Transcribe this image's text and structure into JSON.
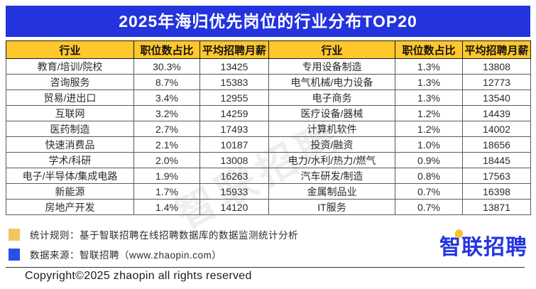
{
  "title": "2025年海归优先岗位的行业分布TOP20",
  "table": {
    "headers": [
      "行业",
      "职位数占比",
      "平均招聘月薪",
      "行业",
      "职位数占比",
      "平均招聘月薪"
    ],
    "rows_left": [
      [
        "教育/培训/院校",
        "30.3%",
        "13425"
      ],
      [
        "咨询服务",
        "8.7%",
        "15383"
      ],
      [
        "贸易/进出口",
        "3.4%",
        "12955"
      ],
      [
        "互联网",
        "3.2%",
        "14259"
      ],
      [
        "医药制造",
        "2.7%",
        "17493"
      ],
      [
        "快速消费品",
        "2.1%",
        "10187"
      ],
      [
        "学术/科研",
        "2.0%",
        "13008"
      ],
      [
        "电子/半导体/集成电路",
        "1.9%",
        "16263"
      ],
      [
        "新能源",
        "1.7%",
        "15933"
      ],
      [
        "房地产开发",
        "1.4%",
        "14120"
      ]
    ],
    "rows_right": [
      [
        "专用设备制造",
        "1.3%",
        "13808"
      ],
      [
        "电气机械/电力设备",
        "1.3%",
        "12773"
      ],
      [
        "电子商务",
        "1.3%",
        "13540"
      ],
      [
        "医疗设备/器械",
        "1.2%",
        "14439"
      ],
      [
        "计算机软件",
        "1.2%",
        "14002"
      ],
      [
        "投资/融资",
        "1.0%",
        "18656"
      ],
      [
        "电力/水利/热力/燃气",
        "0.9%",
        "18445"
      ],
      [
        "汽车研发/制造",
        "0.8%",
        "17563"
      ],
      [
        "金属制品业",
        "0.7%",
        "16398"
      ],
      [
        "IT服务",
        "0.7%",
        "13871"
      ]
    ]
  },
  "chart_data": {
    "type": "table",
    "title": "2025年海归优先岗位的行业分布TOP20",
    "columns": [
      "行业",
      "职位数占比",
      "平均招聘月薪"
    ],
    "rows": [
      [
        "教育/培训/院校",
        "30.3%",
        13425
      ],
      [
        "咨询服务",
        "8.7%",
        15383
      ],
      [
        "贸易/进出口",
        "3.4%",
        12955
      ],
      [
        "互联网",
        "3.2%",
        14259
      ],
      [
        "医药制造",
        "2.7%",
        17493
      ],
      [
        "快速消费品",
        "2.1%",
        10187
      ],
      [
        "学术/科研",
        "2.0%",
        13008
      ],
      [
        "电子/半导体/集成电路",
        "1.9%",
        16263
      ],
      [
        "新能源",
        "1.7%",
        15933
      ],
      [
        "房地产开发",
        "1.4%",
        14120
      ],
      [
        "专用设备制造",
        "1.3%",
        13808
      ],
      [
        "电气机械/电力设备",
        "1.3%",
        12773
      ],
      [
        "电子商务",
        "1.3%",
        13540
      ],
      [
        "医疗设备/器械",
        "1.2%",
        14439
      ],
      [
        "计算机软件",
        "1.2%",
        14002
      ],
      [
        "投资/融资",
        "1.0%",
        18656
      ],
      [
        "电力/水利/热力/燃气",
        "0.9%",
        18445
      ],
      [
        "汽车研发/制造",
        "0.8%",
        17563
      ],
      [
        "金属制品业",
        "0.7%",
        16398
      ],
      [
        "IT服务",
        "0.7%",
        13871
      ]
    ]
  },
  "footer": {
    "legend_rules": "统计规则：基于智联招聘在线招聘数据库的数据监测统计分析",
    "legend_source": "数据来源：智联招聘（www.zhaopin.com）",
    "logo_text": "智联招聘",
    "copyright": "Copyright©2025 zhaopin all rights reserved"
  },
  "watermark": "智联招聘",
  "colors": {
    "title_bar_blue": "#2333dd",
    "header_yellow": "#ffc72c",
    "legend_yellow": "#f0c75f",
    "legend_blue": "#2a4ee8",
    "logo_blue": "#2534e0",
    "logo_dot_yellow": "#ffc12b"
  }
}
